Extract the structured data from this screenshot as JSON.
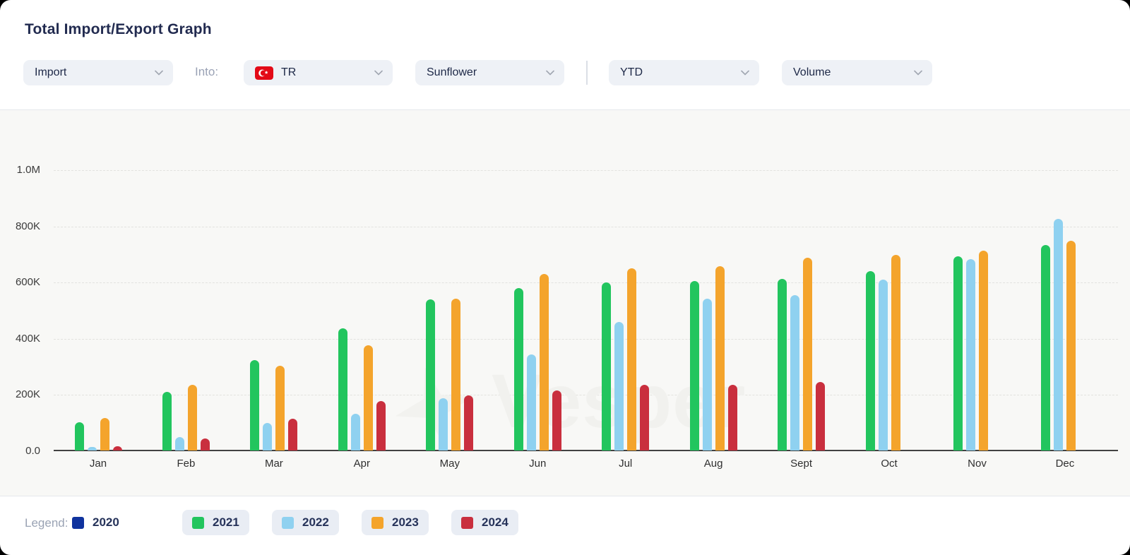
{
  "header": {
    "title": "Total Import/Export Graph"
  },
  "filters": {
    "trade_flow": {
      "value": "Import"
    },
    "into_label": "Into:",
    "country": {
      "value": "TR",
      "flag_icon": "turkey-flag"
    },
    "product": {
      "value": "Sunflower"
    },
    "period": {
      "value": "YTD"
    },
    "measure": {
      "value": "Volume"
    },
    "chevron_icon": "chevron-down"
  },
  "watermark": {
    "logo_icon": "vesper-star",
    "text": "Vesper"
  },
  "chart_data": {
    "type": "bar",
    "title": "Total Import/Export Graph",
    "categories": [
      "Jan",
      "Feb",
      "Mar",
      "Apr",
      "May",
      "Jun",
      "Jul",
      "Aug",
      "Sept",
      "Oct",
      "Nov",
      "Dec"
    ],
    "series": [
      {
        "name": "2020",
        "color": "#10339e",
        "visible": false,
        "values": [
          null,
          null,
          null,
          null,
          null,
          null,
          null,
          null,
          null,
          null,
          null,
          null
        ]
      },
      {
        "name": "2021",
        "color": "#22c55e",
        "visible": true,
        "values": [
          100000,
          210000,
          321000,
          434000,
          538000,
          578000,
          598000,
          603000,
          612000,
          640000,
          693000,
          731000
        ]
      },
      {
        "name": "2022",
        "color": "#8fd1f0",
        "visible": true,
        "values": [
          12000,
          49000,
          97000,
          130000,
          186000,
          341000,
          457000,
          540000,
          553000,
          608000,
          683000,
          824000
        ]
      },
      {
        "name": "2023",
        "color": "#f4a42c",
        "visible": true,
        "values": [
          115000,
          234000,
          301000,
          374000,
          542000,
          630000,
          648000,
          656000,
          686000,
          698000,
          711000,
          746000
        ]
      },
      {
        "name": "2024",
        "color": "#c92f3e",
        "visible": true,
        "values": [
          14000,
          42000,
          114000,
          177000,
          196000,
          214000,
          234000,
          233000,
          244000,
          null,
          null,
          null
        ]
      }
    ],
    "ylim": [
      0,
      1000000
    ],
    "y_ticks": [
      "1.0M",
      "800K",
      "600K",
      "400K",
      "200K",
      "0.0"
    ],
    "xlabel": "",
    "ylabel": "",
    "grid": "horizontal-dashed",
    "legend_position": "bottom"
  },
  "legend": {
    "label": "Legend:",
    "items": [
      {
        "label": "2020",
        "color": "#10339e",
        "active": false
      },
      {
        "label": "2021",
        "color": "#22c55e",
        "active": true
      },
      {
        "label": "2022",
        "color": "#8fd1f0",
        "active": true
      },
      {
        "label": "2023",
        "color": "#f4a42c",
        "active": true
      },
      {
        "label": "2024",
        "color": "#c92f3e",
        "active": true
      }
    ]
  }
}
